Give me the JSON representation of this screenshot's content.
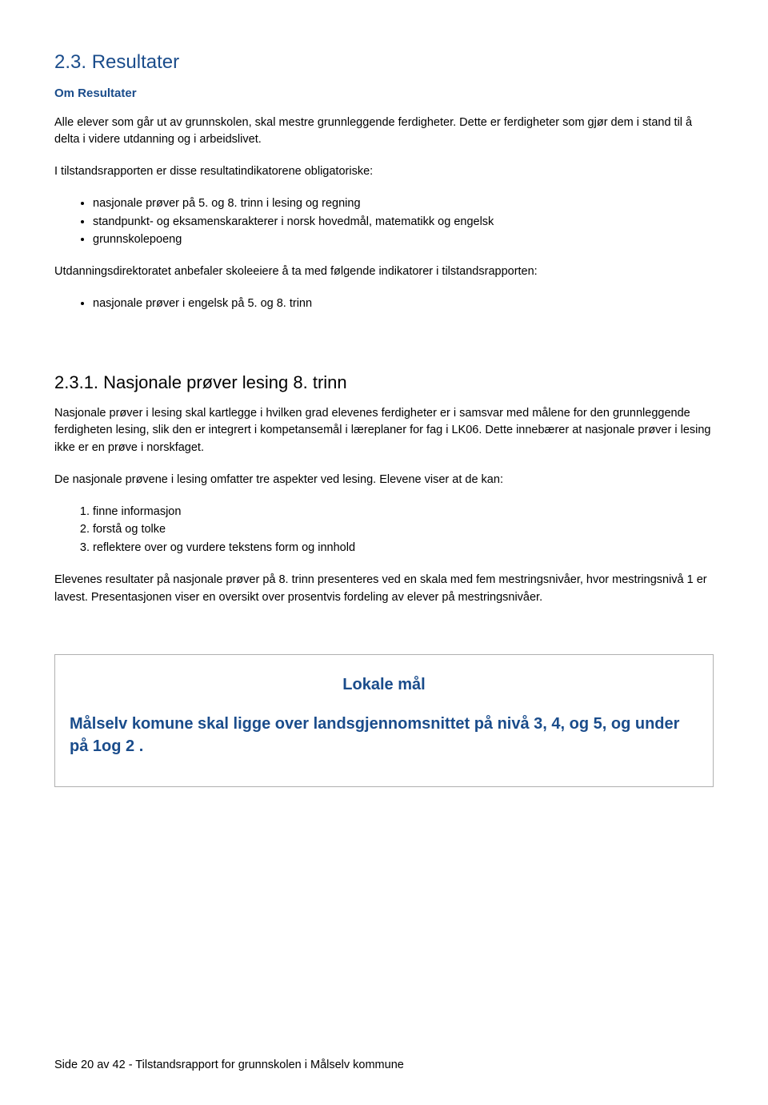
{
  "section": {
    "number": "2.3.",
    "title_text": "Resultater",
    "subhead": "Om Resultater",
    "para1": "Alle elever som går ut av grunnskolen, skal mestre grunnleggende ferdigheter. Dette er ferdigheter som gjør dem i stand til å delta i videre utdanning og i arbeidslivet.",
    "para2": "I tilstandsrapporten er disse resultatindikatorene obligatoriske:",
    "list1": {
      "item0": "nasjonale prøver på 5. og 8. trinn i lesing og regning",
      "item1": "standpunkt- og eksamenskarakterer i norsk hovedmål, matematikk og engelsk",
      "item2": "grunnskolepoeng"
    },
    "para3": "Utdanningsdirektoratet anbefaler skoleeiere å ta med følgende indikatorer i tilstandsrapporten:",
    "list2": {
      "item0": "nasjonale prøver i engelsk på 5. og 8. trinn"
    }
  },
  "subsection": {
    "number": "2.3.1.",
    "title_text": "Nasjonale prøver lesing 8. trinn",
    "para1": "Nasjonale prøver i lesing skal kartlegge i hvilken grad elevenes ferdigheter er i samsvar med målene for den grunnleggende ferdigheten lesing, slik den er integrert i kompetansemål i læreplaner for fag i LK06. Dette innebærer at nasjonale prøver i lesing ikke er en prøve i norskfaget.",
    "para2": "De nasjonale prøvene i lesing omfatter tre aspekter ved lesing. Elevene viser at de kan:",
    "olist": {
      "item0": "finne informasjon",
      "item1": "forstå og tolke",
      "item2": "reflektere over og vurdere tekstens form og innhold"
    },
    "para3": "Elevenes resultater på nasjonale prøver på 8. trinn presenteres ved en skala med fem mestringsnivåer, hvor mestringsnivå 1 er lavest. Presentasjonen viser en oversikt over prosentvis fordeling av elever på mestringsnivåer."
  },
  "goalbox": {
    "title": "Lokale mål",
    "text": "Målselv komune skal ligge over landsgjennomsnittet på nivå 3, 4, og 5, og under på 1og 2 ."
  },
  "footer": "Side 20 av 42 - Tilstandsrapport for grunnskolen i Målselv kommune"
}
